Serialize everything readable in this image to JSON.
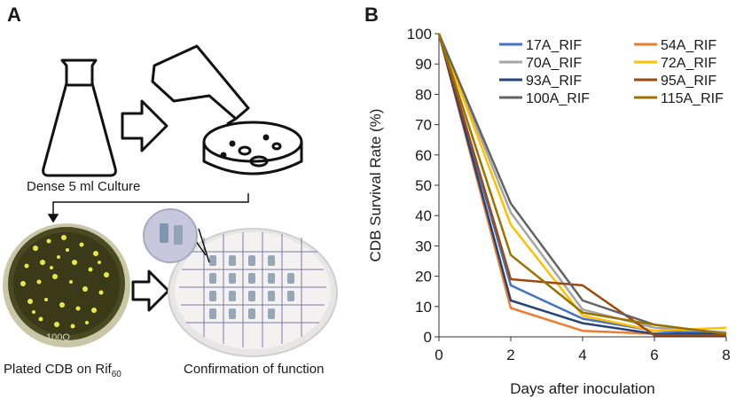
{
  "panel_a": {
    "label": "A",
    "caption_culture": "Dense 5 ml Culture",
    "caption_plated_prefix": "Plated CDB on Rif",
    "caption_plated_sub": "60",
    "caption_confirm": "Confirmation of function",
    "plate_label": "100Q",
    "colors": {
      "colony": "#e8e84a",
      "agar": "#4a4a22",
      "grid": "#7a7aa8"
    }
  },
  "panel_b": {
    "label": "B"
  },
  "chart_data": {
    "type": "line",
    "xlabel": "Days after inoculation",
    "ylabel": "CDB Survival Rate (%)",
    "xlim": [
      0,
      8
    ],
    "ylim": [
      0,
      100
    ],
    "xticks": [
      "0",
      "2",
      "4",
      "6",
      "8"
    ],
    "yticks": [
      "0",
      "10",
      "20",
      "30",
      "40",
      "50",
      "60",
      "70",
      "80",
      "90",
      "100"
    ],
    "x": [
      0,
      2,
      4,
      6,
      8
    ],
    "legend_position": "top-right",
    "series": [
      {
        "name": "17A_RIF",
        "color": "#4472c4",
        "values": [
          100,
          17,
          6,
          2,
          1
        ]
      },
      {
        "name": "54A_RIF",
        "color": "#ed7d31",
        "values": [
          100,
          9.5,
          2,
          1,
          1
        ]
      },
      {
        "name": "70A_RIF",
        "color": "#a5a5a5",
        "values": [
          100,
          41,
          9,
          3,
          1.5
        ]
      },
      {
        "name": "72A_RIF",
        "color": "#ffc000",
        "values": [
          100,
          37,
          7,
          2,
          3
        ]
      },
      {
        "name": "93A_RIF",
        "color": "#264478",
        "values": [
          100,
          12,
          4.5,
          1,
          1
        ]
      },
      {
        "name": "95A_RIF",
        "color": "#9e480e",
        "values": [
          100,
          19,
          17,
          0.5,
          0.5
        ]
      },
      {
        "name": "100A_RIF",
        "color": "#636363",
        "values": [
          100,
          44,
          12,
          4,
          1
        ]
      },
      {
        "name": "115A_RIF",
        "color": "#997300",
        "values": [
          100,
          27,
          8,
          4,
          1
        ]
      }
    ]
  }
}
